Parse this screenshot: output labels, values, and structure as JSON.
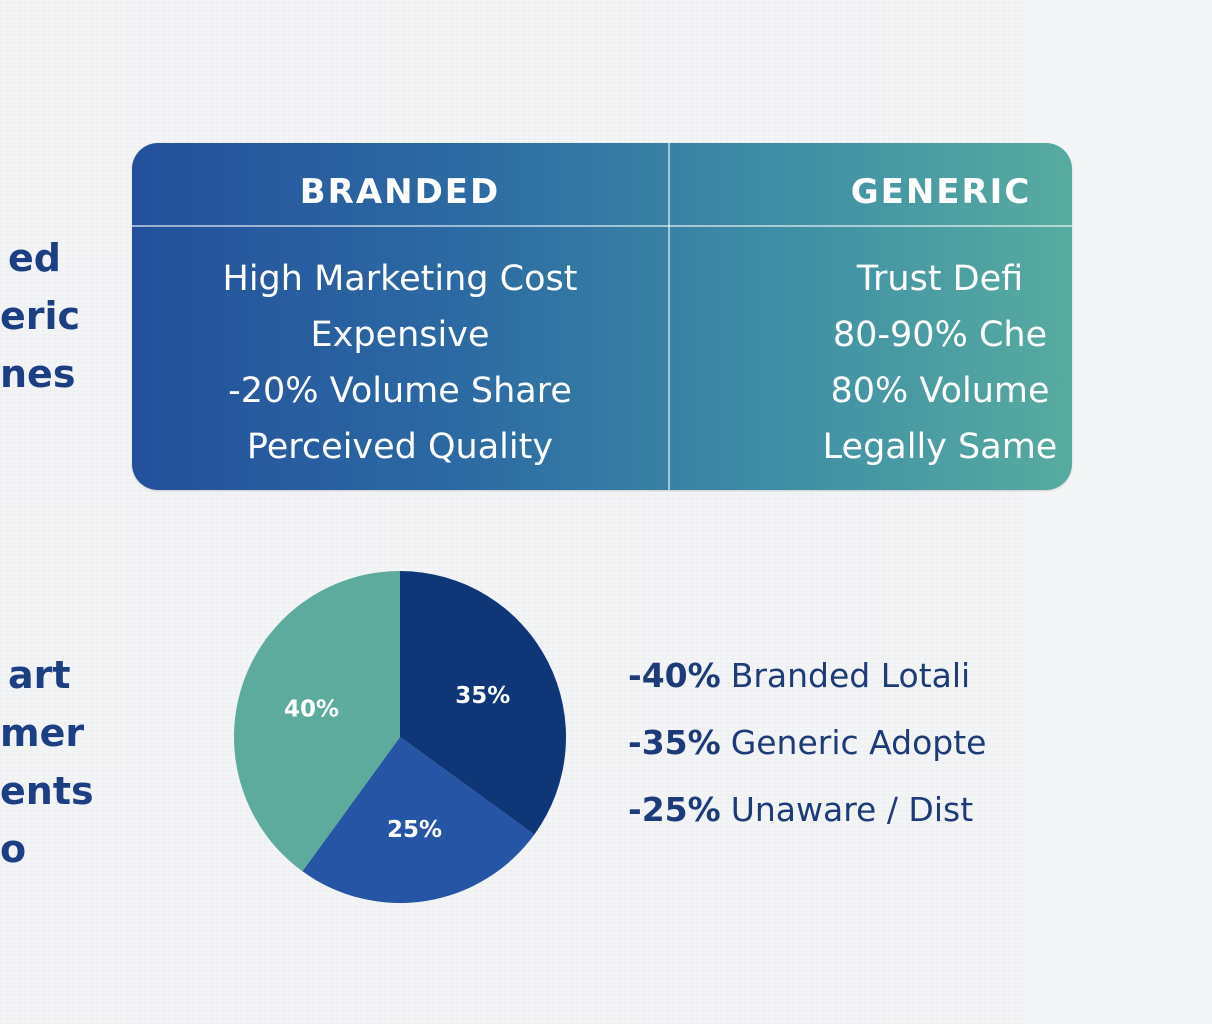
{
  "side_top": [
    "ed",
    "eric",
    "nes"
  ],
  "side_bottom": [
    "art",
    "mer",
    "ents",
    "o"
  ],
  "table": {
    "left_header": "BRANDED",
    "right_header": "GENERIC",
    "left_items": [
      "High Marketing Cost",
      "Expensive",
      "-20% Volume Share",
      "Perceived Quality"
    ],
    "right_items": [
      "Trust Defi",
      "80-90% Che",
      "80% Volume",
      "Legally Same"
    ]
  },
  "chart_data": {
    "type": "pie",
    "values": [
      35,
      25,
      40
    ],
    "labels": [
      "35%",
      "25%",
      "40%"
    ],
    "colors": [
      "#0f3777",
      "#2555a4",
      "#5dab9d"
    ]
  },
  "legend": [
    {
      "pct": "-40%",
      "text": "Branded Lotali"
    },
    {
      "pct": "-35%",
      "text": "Generic Adopte"
    },
    {
      "pct": "-25%",
      "text": "Unaware / Dist"
    }
  ]
}
